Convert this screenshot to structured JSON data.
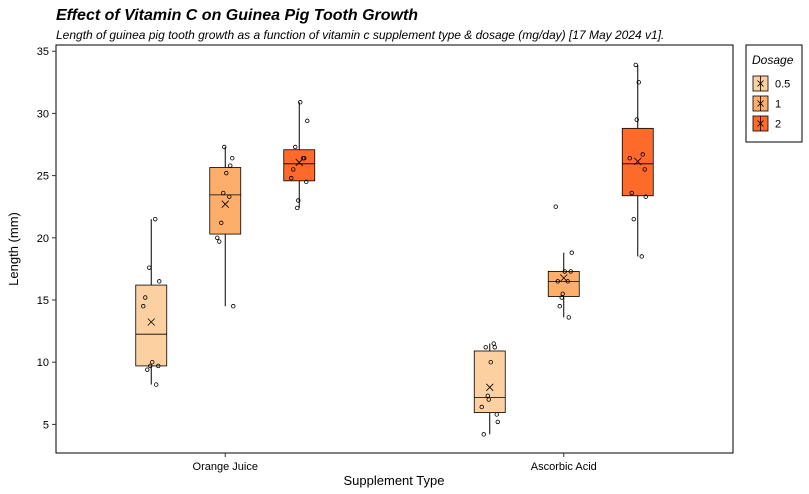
{
  "chart_data": {
    "type": "box",
    "title": "Effect of Vitamin C on Guinea Pig Tooth Growth",
    "subtitle": "Length of guinea pig tooth growth as a function of vitamin c supplement type & dosage (mg/day) [17 May 2024 v1].",
    "xlabel": "Supplement Type",
    "ylabel": "Length (mm)",
    "ylim": [
      2.7,
      35.5
    ],
    "yticks": [
      "5",
      "10",
      "15",
      "20",
      "25",
      "30",
      "35"
    ],
    "categories": [
      "Orange Juice",
      "Ascorbic Acid"
    ],
    "legend": {
      "title": "Dosage",
      "position": "right"
    },
    "series": [
      {
        "name": "0.5",
        "color": "#FDD0A2",
        "boxes": [
          {
            "category": "Orange Juice",
            "min": 8.2,
            "q1": 9.7,
            "median": 12.25,
            "q3": 16.2,
            "max": 21.5,
            "mean": 13.23,
            "points": [
              15.2,
              21.5,
              17.6,
              9.7,
              14.5,
              10.0,
              8.2,
              9.4,
              16.5,
              9.7
            ]
          },
          {
            "category": "Ascorbic Acid",
            "min": 4.2,
            "q1": 5.95,
            "median": 7.15,
            "q3": 10.9,
            "max": 11.5,
            "mean": 7.98,
            "points": [
              4.2,
              11.5,
              7.3,
              5.8,
              6.4,
              10.0,
              11.2,
              11.2,
              5.2,
              7.0
            ]
          }
        ]
      },
      {
        "name": "1",
        "color": "#FDAE6B",
        "boxes": [
          {
            "category": "Orange Juice",
            "min": 14.5,
            "q1": 20.3,
            "median": 23.45,
            "q3": 25.65,
            "max": 27.3,
            "mean": 22.7,
            "points": [
              19.7,
              23.3,
              23.6,
              26.4,
              20.0,
              25.2,
              25.8,
              21.2,
              14.5,
              27.3
            ]
          },
          {
            "category": "Ascorbic Acid",
            "min": 13.6,
            "q1": 15.28,
            "median": 16.5,
            "q3": 17.3,
            "max": 18.8,
            "mean": 16.77,
            "points": [
              16.5,
              16.5,
              15.2,
              17.3,
              22.5,
              17.3,
              13.6,
              14.5,
              18.8,
              15.5
            ]
          }
        ]
      },
      {
        "name": "2",
        "color": "#FD6A2A",
        "boxes": [
          {
            "category": "Orange Juice",
            "min": 22.4,
            "q1": 24.58,
            "median": 25.95,
            "q3": 27.08,
            "max": 30.9,
            "mean": 26.06,
            "points": [
              25.5,
              26.4,
              22.4,
              24.5,
              24.8,
              30.9,
              26.4,
              27.3,
              29.4,
              23.0
            ]
          },
          {
            "category": "Ascorbic Acid",
            "min": 18.5,
            "q1": 23.38,
            "median": 25.95,
            "q3": 28.8,
            "max": 33.9,
            "mean": 26.14,
            "points": [
              23.6,
              18.5,
              33.9,
              25.5,
              26.4,
              32.5,
              26.7,
              21.5,
              23.3,
              29.5
            ]
          }
        ]
      }
    ]
  }
}
